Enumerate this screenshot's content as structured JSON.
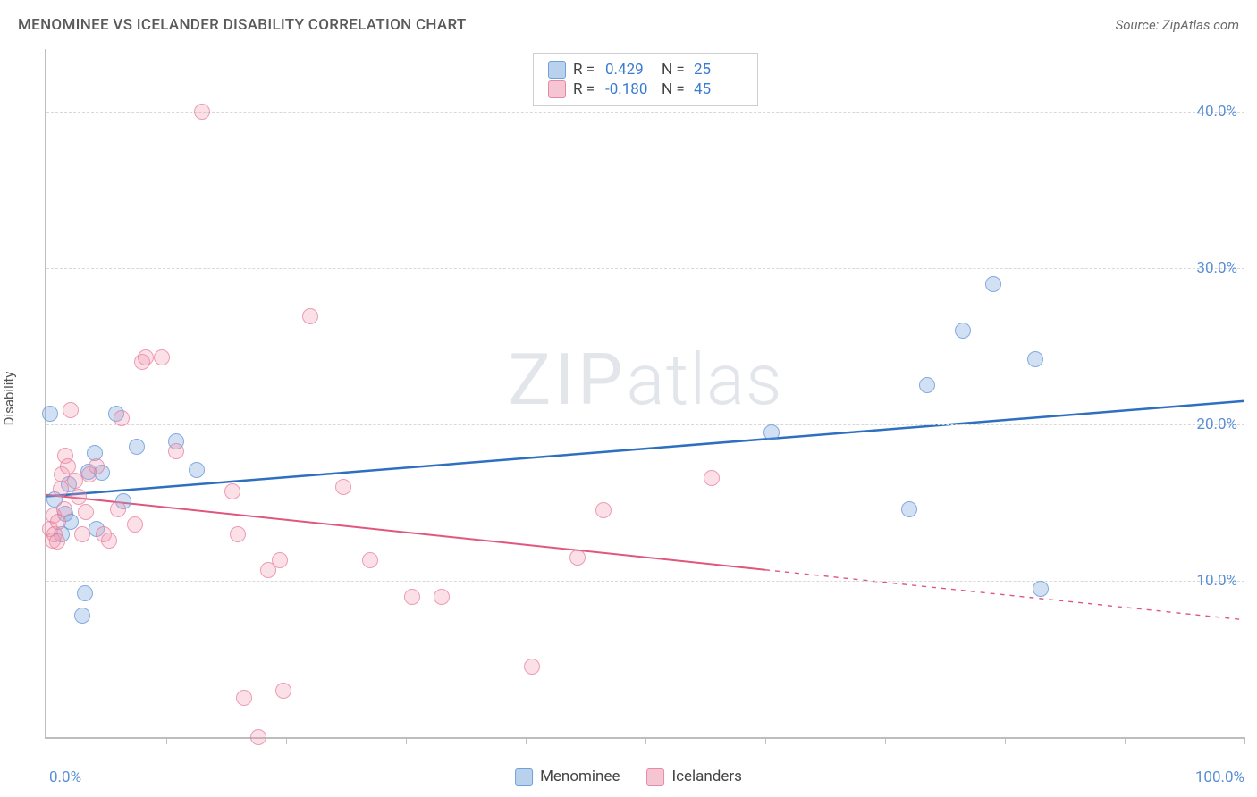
{
  "title": "MENOMINEE VS ICELANDER DISABILITY CORRELATION CHART",
  "source": "Source: ZipAtlas.com",
  "ylabel": "Disability",
  "watermark_zip": "ZIP",
  "watermark_atlas": "atlas",
  "chart": {
    "type": "scatter",
    "xlim": [
      0,
      100
    ],
    "ylim": [
      0,
      44
    ],
    "x_label_min": "0.0%",
    "x_label_max": "100.0%",
    "y_ticks": [
      10,
      20,
      30,
      40
    ],
    "y_tick_labels": [
      "10.0%",
      "20.0%",
      "30.0%",
      "40.0%"
    ],
    "x_ticks": [
      10,
      20,
      30,
      40,
      50,
      60,
      70,
      80,
      90,
      100
    ],
    "background_color": "#ffffff",
    "grid_color": "#d8d8d8",
    "axis_color": "#bdbdbd",
    "tick_label_color": "#5a8fd6",
    "marker_size": 16,
    "series": [
      {
        "name": "Menominee",
        "color_fill": "rgba(120,165,220,0.45)",
        "color_stroke": "#5a8fd6",
        "css_class": "blue",
        "R": "0.429",
        "N": "25",
        "trend": {
          "x1": 0,
          "y1": 15.4,
          "x2": 100,
          "y2": 21.5,
          "solid_to_x": 100,
          "color": "#2e6fbf",
          "width": 2.5
        },
        "points": [
          [
            0.3,
            20.7
          ],
          [
            0.7,
            15.2
          ],
          [
            1.3,
            13.0
          ],
          [
            1.6,
            14.3
          ],
          [
            2.0,
            13.8
          ],
          [
            1.9,
            16.2
          ],
          [
            3.0,
            7.8
          ],
          [
            3.2,
            9.2
          ],
          [
            3.5,
            17.0
          ],
          [
            4.0,
            18.2
          ],
          [
            4.2,
            13.3
          ],
          [
            4.6,
            16.9
          ],
          [
            5.8,
            20.7
          ],
          [
            6.4,
            15.1
          ],
          [
            7.5,
            18.6
          ],
          [
            10.8,
            18.9
          ],
          [
            12.5,
            17.1
          ],
          [
            60.5,
            19.5
          ],
          [
            72.0,
            14.6
          ],
          [
            73.5,
            22.5
          ],
          [
            76.5,
            26.0
          ],
          [
            79.0,
            29.0
          ],
          [
            82.5,
            24.2
          ],
          [
            83.0,
            9.5
          ]
        ]
      },
      {
        "name": "Icelanders",
        "color_fill": "rgba(240,150,175,0.40)",
        "color_stroke": "#e77a9a",
        "css_class": "pink",
        "R": "-0.180",
        "N": "45",
        "trend": {
          "x1": 0,
          "y1": 15.5,
          "x2": 100,
          "y2": 7.5,
          "solid_to_x": 60,
          "color": "#e0577e",
          "width": 2
        },
        "points": [
          [
            0.3,
            13.3
          ],
          [
            0.5,
            12.6
          ],
          [
            0.6,
            14.2
          ],
          [
            0.7,
            13.0
          ],
          [
            0.9,
            12.5
          ],
          [
            1.0,
            13.8
          ],
          [
            1.2,
            15.9
          ],
          [
            1.3,
            16.8
          ],
          [
            1.5,
            14.6
          ],
          [
            1.6,
            18.0
          ],
          [
            1.8,
            17.3
          ],
          [
            2.0,
            20.9
          ],
          [
            2.4,
            16.4
          ],
          [
            2.7,
            15.4
          ],
          [
            3.0,
            13.0
          ],
          [
            3.3,
            14.4
          ],
          [
            3.6,
            16.8
          ],
          [
            4.2,
            17.3
          ],
          [
            4.8,
            13.0
          ],
          [
            5.2,
            12.6
          ],
          [
            6.0,
            14.6
          ],
          [
            6.3,
            20.4
          ],
          [
            7.4,
            13.6
          ],
          [
            8.0,
            24.0
          ],
          [
            8.3,
            24.3
          ],
          [
            9.6,
            24.3
          ],
          [
            10.8,
            18.3
          ],
          [
            13.0,
            40.0
          ],
          [
            15.5,
            15.7
          ],
          [
            16.0,
            13.0
          ],
          [
            16.5,
            2.5
          ],
          [
            17.7,
            0.0
          ],
          [
            18.5,
            10.7
          ],
          [
            19.5,
            11.3
          ],
          [
            19.8,
            3.0
          ],
          [
            22.0,
            26.9
          ],
          [
            24.8,
            16.0
          ],
          [
            27.0,
            11.3
          ],
          [
            30.5,
            9.0
          ],
          [
            33.0,
            9.0
          ],
          [
            40.5,
            4.5
          ],
          [
            44.3,
            11.5
          ],
          [
            46.5,
            14.5
          ],
          [
            55.5,
            16.6
          ]
        ]
      }
    ]
  },
  "legend": {
    "series1_label": "Menominee",
    "series2_label": "Icelanders"
  },
  "stats": {
    "row1": {
      "R_label": "R =",
      "R_val": "0.429",
      "N_label": "N =",
      "N_val": "25"
    },
    "row2": {
      "R_label": "R =",
      "R_val": "-0.180",
      "N_label": "N =",
      "N_val": "45"
    }
  }
}
